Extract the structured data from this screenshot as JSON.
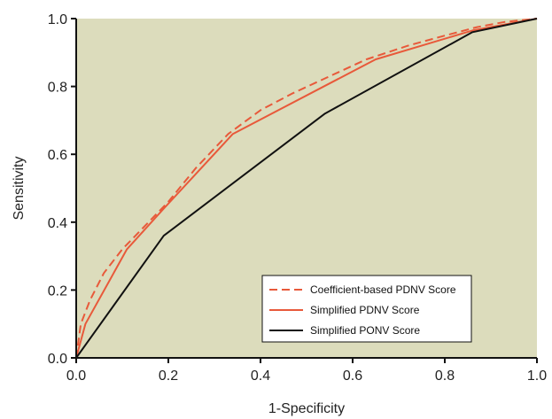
{
  "chart_data": {
    "type": "line",
    "title": "",
    "xlabel": "1-Specificity",
    "ylabel": "Sensitivity",
    "xlim": [
      0,
      1
    ],
    "ylim": [
      0,
      1
    ],
    "xticks": [
      "0.0",
      "0.2",
      "0.4",
      "0.6",
      "0.8",
      "1.0"
    ],
    "yticks": [
      "0.0",
      "0.2",
      "0.4",
      "0.6",
      "0.8",
      "1.0"
    ],
    "grid": false,
    "background_color": "#dcdcbc",
    "legend_position": "bottom-right",
    "series": [
      {
        "name": "Coefficient-based PDNV Score",
        "color": "#e8593a",
        "style": "dashed",
        "x": [
          0,
          0.01,
          0.03,
          0.06,
          0.1,
          0.15,
          0.2,
          0.26,
          0.33,
          0.4,
          0.47,
          0.55,
          0.63,
          0.72,
          0.8,
          0.87,
          0.93,
          1.0
        ],
        "y": [
          0,
          0.1,
          0.17,
          0.25,
          0.32,
          0.39,
          0.46,
          0.56,
          0.66,
          0.73,
          0.78,
          0.83,
          0.88,
          0.92,
          0.95,
          0.975,
          0.99,
          1.0
        ]
      },
      {
        "name": "Simplified PDNV Score",
        "color": "#e8593a",
        "style": "solid",
        "x": [
          0,
          0.02,
          0.11,
          0.19,
          0.34,
          0.65,
          0.86,
          1.0
        ],
        "y": [
          0,
          0.1,
          0.32,
          0.44,
          0.66,
          0.88,
          0.965,
          1.0
        ]
      },
      {
        "name": "Simplified PONV Score",
        "color": "#111111",
        "style": "solid",
        "x": [
          0,
          0.19,
          0.54,
          0.86,
          1.0
        ],
        "y": [
          0,
          0.36,
          0.72,
          0.96,
          1.0
        ]
      }
    ]
  }
}
